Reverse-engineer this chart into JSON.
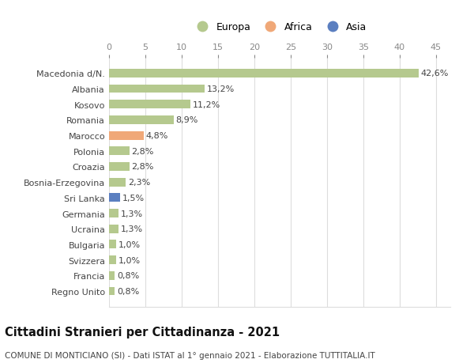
{
  "categories": [
    "Macedonia d/N.",
    "Albania",
    "Kosovo",
    "Romania",
    "Marocco",
    "Polonia",
    "Croazia",
    "Bosnia-Erzegovina",
    "Sri Lanka",
    "Germania",
    "Ucraina",
    "Bulgaria",
    "Svizzera",
    "Francia",
    "Regno Unito"
  ],
  "values": [
    42.6,
    13.2,
    11.2,
    8.9,
    4.8,
    2.8,
    2.8,
    2.3,
    1.5,
    1.3,
    1.3,
    1.0,
    1.0,
    0.8,
    0.8
  ],
  "labels": [
    "42,6%",
    "13,2%",
    "11,2%",
    "8,9%",
    "4,8%",
    "2,8%",
    "2,8%",
    "2,3%",
    "1,5%",
    "1,3%",
    "1,3%",
    "1,0%",
    "1,0%",
    "0,8%",
    "0,8%"
  ],
  "colors": [
    "#b5c98e",
    "#b5c98e",
    "#b5c98e",
    "#b5c98e",
    "#f0a878",
    "#b5c98e",
    "#b5c98e",
    "#b5c98e",
    "#5b7fc0",
    "#b5c98e",
    "#b5c98e",
    "#b5c98e",
    "#b5c98e",
    "#b5c98e",
    "#b5c98e"
  ],
  "legend_labels": [
    "Europa",
    "Africa",
    "Asia"
  ],
  "legend_colors": [
    "#b5c98e",
    "#f0a878",
    "#5b7fc0"
  ],
  "xlim": [
    0,
    47
  ],
  "xticks": [
    0,
    5,
    10,
    15,
    20,
    25,
    30,
    35,
    40,
    45
  ],
  "title": "Cittadini Stranieri per Cittadinanza - 2021",
  "subtitle": "COMUNE DI MONTICIANO (SI) - Dati ISTAT al 1° gennaio 2021 - Elaborazione TUTTITALIA.IT",
  "background_color": "#ffffff",
  "grid_color": "#dddddd",
  "bar_height": 0.55,
  "label_fontsize": 8,
  "ytick_fontsize": 8,
  "xtick_fontsize": 8,
  "title_fontsize": 10.5,
  "subtitle_fontsize": 7.5,
  "legend_fontsize": 9
}
